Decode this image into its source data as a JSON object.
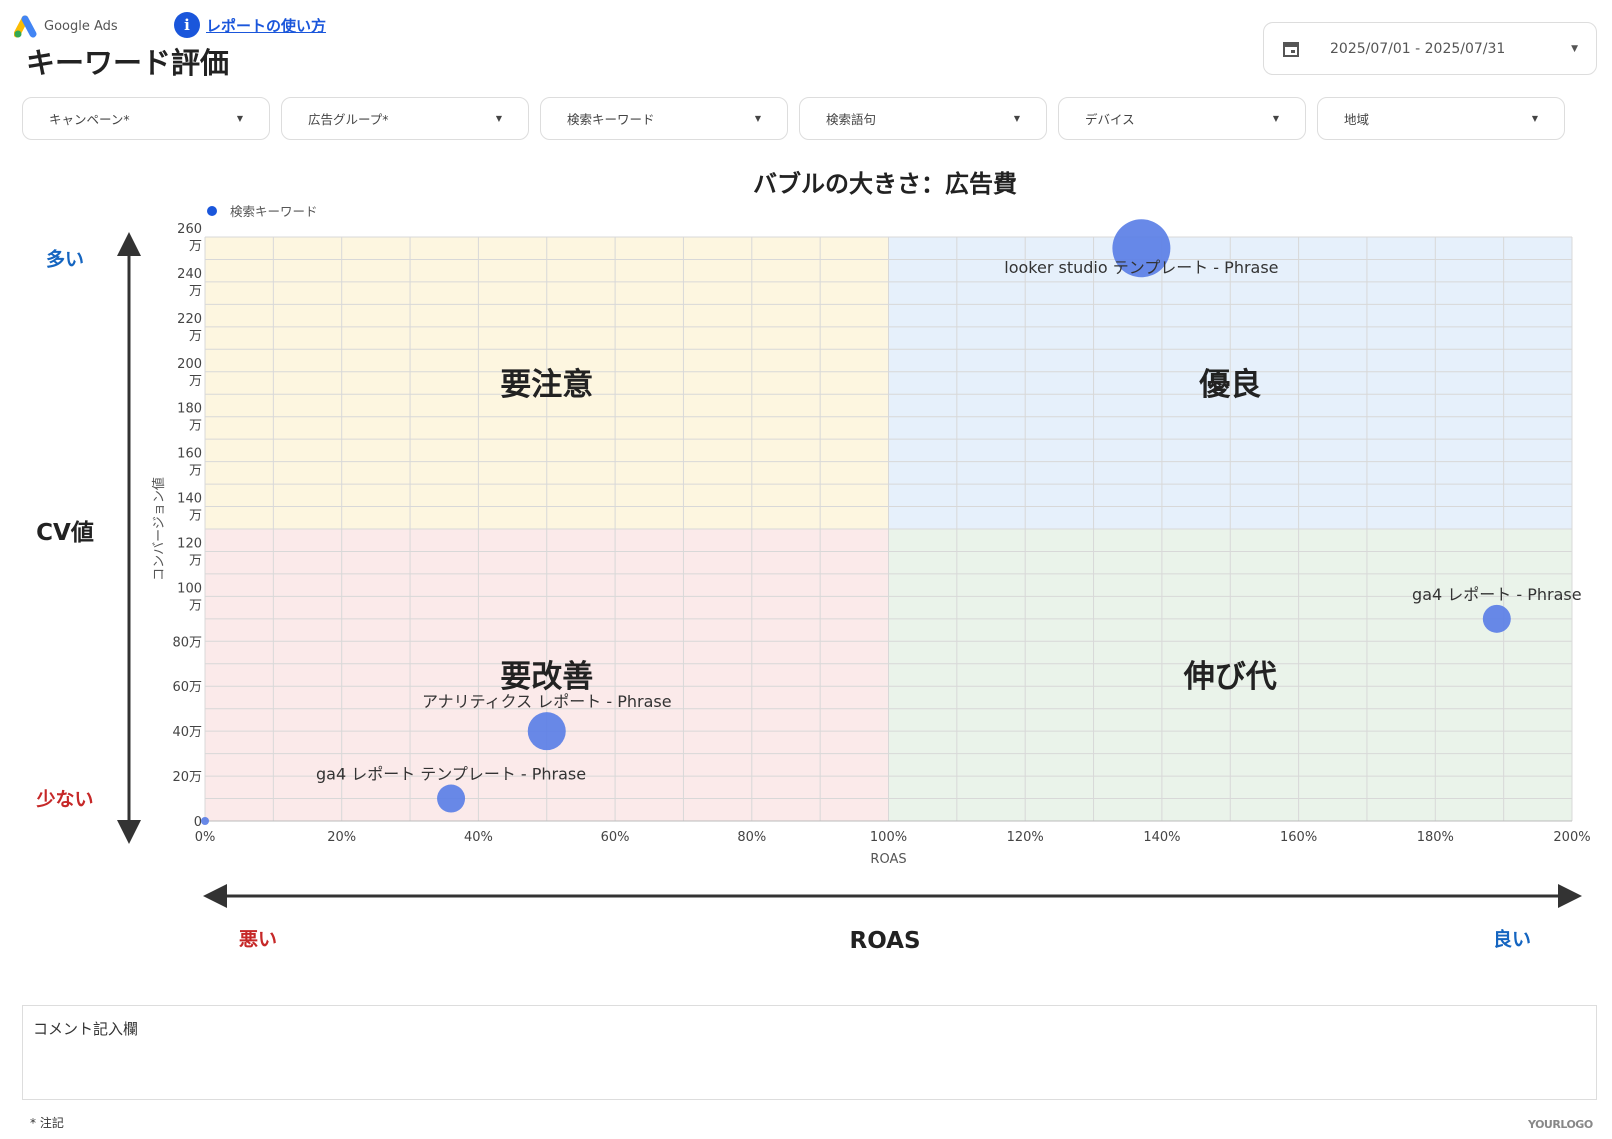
{
  "header": {
    "logo_text": "Google Ads",
    "help_link": "レポートの使い方",
    "title": "キーワード評価",
    "date_range": "2025/07/01 - 2025/07/31"
  },
  "filters": [
    {
      "label": "キャンペーン*"
    },
    {
      "label": "広告グループ*"
    },
    {
      "label": "検索キーワード"
    },
    {
      "label": "検索語句"
    },
    {
      "label": "デバイス"
    },
    {
      "label": "地域"
    }
  ],
  "side_labels": {
    "many": "多い",
    "cv": "CV値",
    "few": "少ない",
    "bad": "悪い",
    "roas": "ROAS",
    "good": "良い"
  },
  "colors": {
    "accent": "#1a56db",
    "bubble": "#5b7fe6",
    "good_blue": "#1565c0",
    "bad_red": "#c62828"
  },
  "chart_data": {
    "type": "scatter",
    "title": "バブルの大きさ：広告費",
    "legend": "検索キーワード",
    "legend_position": "top-left",
    "xlabel": "ROAS",
    "ylabel": "コンバージョン値",
    "xlim": [
      0,
      200
    ],
    "ylim": [
      0,
      2600000
    ],
    "xticks": [
      "0%",
      "20%",
      "40%",
      "60%",
      "80%",
      "100%",
      "120%",
      "140%",
      "160%",
      "180%",
      "200%"
    ],
    "yticks": [
      "0",
      "20万",
      "40万",
      "60万",
      "80万",
      "100万",
      "120万",
      "140万",
      "160万",
      "180万",
      "200万",
      "220万",
      "240万",
      "260万"
    ],
    "grid": true,
    "quadrants": [
      {
        "label": "要注意",
        "color": "#fdf6e0"
      },
      {
        "label": "優良",
        "color": "#e6f0fb"
      },
      {
        "label": "要改善",
        "color": "#fbeaea"
      },
      {
        "label": "伸び代",
        "color": "#eaf3ea"
      }
    ],
    "points": [
      {
        "label": "looker studio テンプレート - Phrase",
        "x": 137,
        "y": 2550000,
        "size": "large"
      },
      {
        "label": "ga4 レポート - Phrase",
        "x": 189,
        "y": 900000,
        "size": "small"
      },
      {
        "label": "アナリティクス レポート - Phrase",
        "x": 50,
        "y": 400000,
        "size": "medium"
      },
      {
        "label": "ga4 レポート テンプレート - Phrase",
        "x": 36,
        "y": 100000,
        "size": "small"
      },
      {
        "label": "",
        "x": 0,
        "y": 0,
        "size": "tiny"
      }
    ]
  },
  "comment": {
    "label": "コメント記入欄"
  },
  "footer": {
    "note": "* 注記",
    "watermark": "YOURLOGO"
  }
}
